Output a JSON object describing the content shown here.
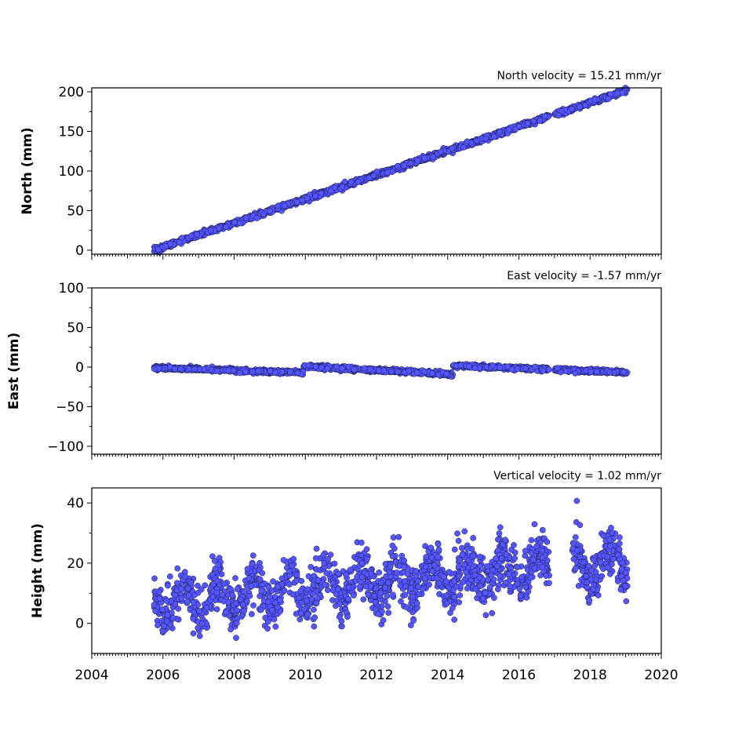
{
  "colors": {
    "marker_fill": "#5555ff",
    "marker_edge": "#1a1a4a",
    "axes": "#000000"
  },
  "chart_data": [
    {
      "type": "scatter",
      "ylabel": "North (mm)",
      "annotation": "North velocity = 15.21 mm/yr",
      "xlim": [
        2004,
        2020
      ],
      "ylim": [
        -5,
        205
      ],
      "yticks": [
        0,
        50,
        100,
        150,
        200
      ],
      "ytick_labels": [
        "0",
        "50",
        "100",
        "150",
        "200"
      ],
      "x_range": [
        2005.75,
        2019.05
      ],
      "data_gap": [
        2016.85,
        2017.0
      ],
      "trend": {
        "x0": 2005.75,
        "y0": 0,
        "rate": 15.21
      },
      "scatter_sd": 1.5
    },
    {
      "type": "scatter",
      "ylabel": "East (mm)",
      "annotation": "East velocity = -1.57 mm/yr",
      "xlim": [
        2004,
        2020
      ],
      "ylim": [
        -110,
        100
      ],
      "yticks": [
        -100,
        -50,
        0,
        50,
        100
      ],
      "ytick_labels": [
        "−100",
        "−50",
        "0",
        "50",
        "100"
      ],
      "x_range": [
        2005.75,
        2019.05
      ],
      "data_gap": [
        2016.85,
        2017.0
      ],
      "segments": [
        {
          "x0": 2005.75,
          "x1": 2009.95,
          "y0": -1,
          "y1": -7
        },
        {
          "x0": 2009.95,
          "x1": 2014.15,
          "y0": 1,
          "y1": -9
        },
        {
          "x0": 2014.15,
          "x1": 2019.05,
          "y0": 2,
          "y1": -7
        }
      ],
      "scatter_sd": 1.2
    },
    {
      "type": "scatter",
      "ylabel": "Height (mm)",
      "annotation": "Vertical velocity = 1.02 mm/yr",
      "xlim": [
        2004,
        2020
      ],
      "ylim": [
        -10,
        45
      ],
      "yticks": [
        0,
        20,
        40
      ],
      "ytick_labels": [
        "0",
        "20",
        "40"
      ],
      "x_range": [
        2005.75,
        2019.05
      ],
      "data_gap": [
        2016.85,
        2017.5
      ],
      "trend": {
        "x0": 2005.75,
        "y0": 7,
        "rate": 1.02
      },
      "seasonal_amplitude": 5,
      "scatter_sd": 4,
      "xticks": [
        2004,
        2006,
        2008,
        2010,
        2012,
        2014,
        2016,
        2018,
        2020
      ],
      "xtick_labels": [
        "2004",
        "2006",
        "2008",
        "2010",
        "2012",
        "2014",
        "2016",
        "2018",
        "2020"
      ]
    }
  ]
}
